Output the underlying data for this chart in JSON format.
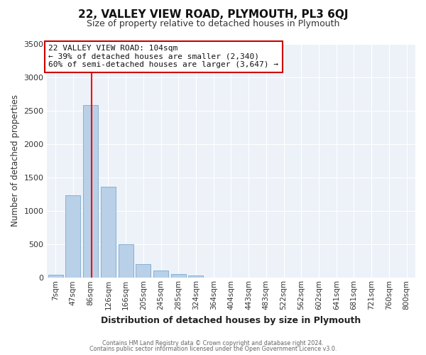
{
  "title": "22, VALLEY VIEW ROAD, PLYMOUTH, PL3 6QJ",
  "subtitle": "Size of property relative to detached houses in Plymouth",
  "xlabel": "Distribution of detached houses by size in Plymouth",
  "ylabel": "Number of detached properties",
  "bar_labels": [
    "7sqm",
    "47sqm",
    "86sqm",
    "126sqm",
    "166sqm",
    "205sqm",
    "245sqm",
    "285sqm",
    "324sqm",
    "364sqm",
    "404sqm",
    "443sqm",
    "483sqm",
    "522sqm",
    "562sqm",
    "602sqm",
    "641sqm",
    "681sqm",
    "721sqm",
    "760sqm",
    "800sqm"
  ],
  "bar_values": [
    50,
    1230,
    2580,
    1360,
    500,
    200,
    110,
    55,
    30,
    0,
    0,
    0,
    0,
    0,
    0,
    0,
    0,
    0,
    0,
    0,
    0
  ],
  "bar_color": "#b8d0e8",
  "bar_edge_color": "#7aaace",
  "vline_color": "red",
  "annotation_title": "22 VALLEY VIEW ROAD: 104sqm",
  "annotation_line1": "← 39% of detached houses are smaller (2,340)",
  "annotation_line2": "60% of semi-detached houses are larger (3,647) →",
  "annotation_box_color": "white",
  "annotation_box_edge": "#cc0000",
  "ylim": [
    0,
    3500
  ],
  "yticks": [
    0,
    500,
    1000,
    1500,
    2000,
    2500,
    3000,
    3500
  ],
  "footer1": "Contains HM Land Registry data © Crown copyright and database right 2024.",
  "footer2": "Contains public sector information licensed under the Open Government Licence v3.0.",
  "bg_color": "#ffffff",
  "plot_bg_color": "#edf2f9",
  "title_fontsize": 11,
  "subtitle_fontsize": 9
}
